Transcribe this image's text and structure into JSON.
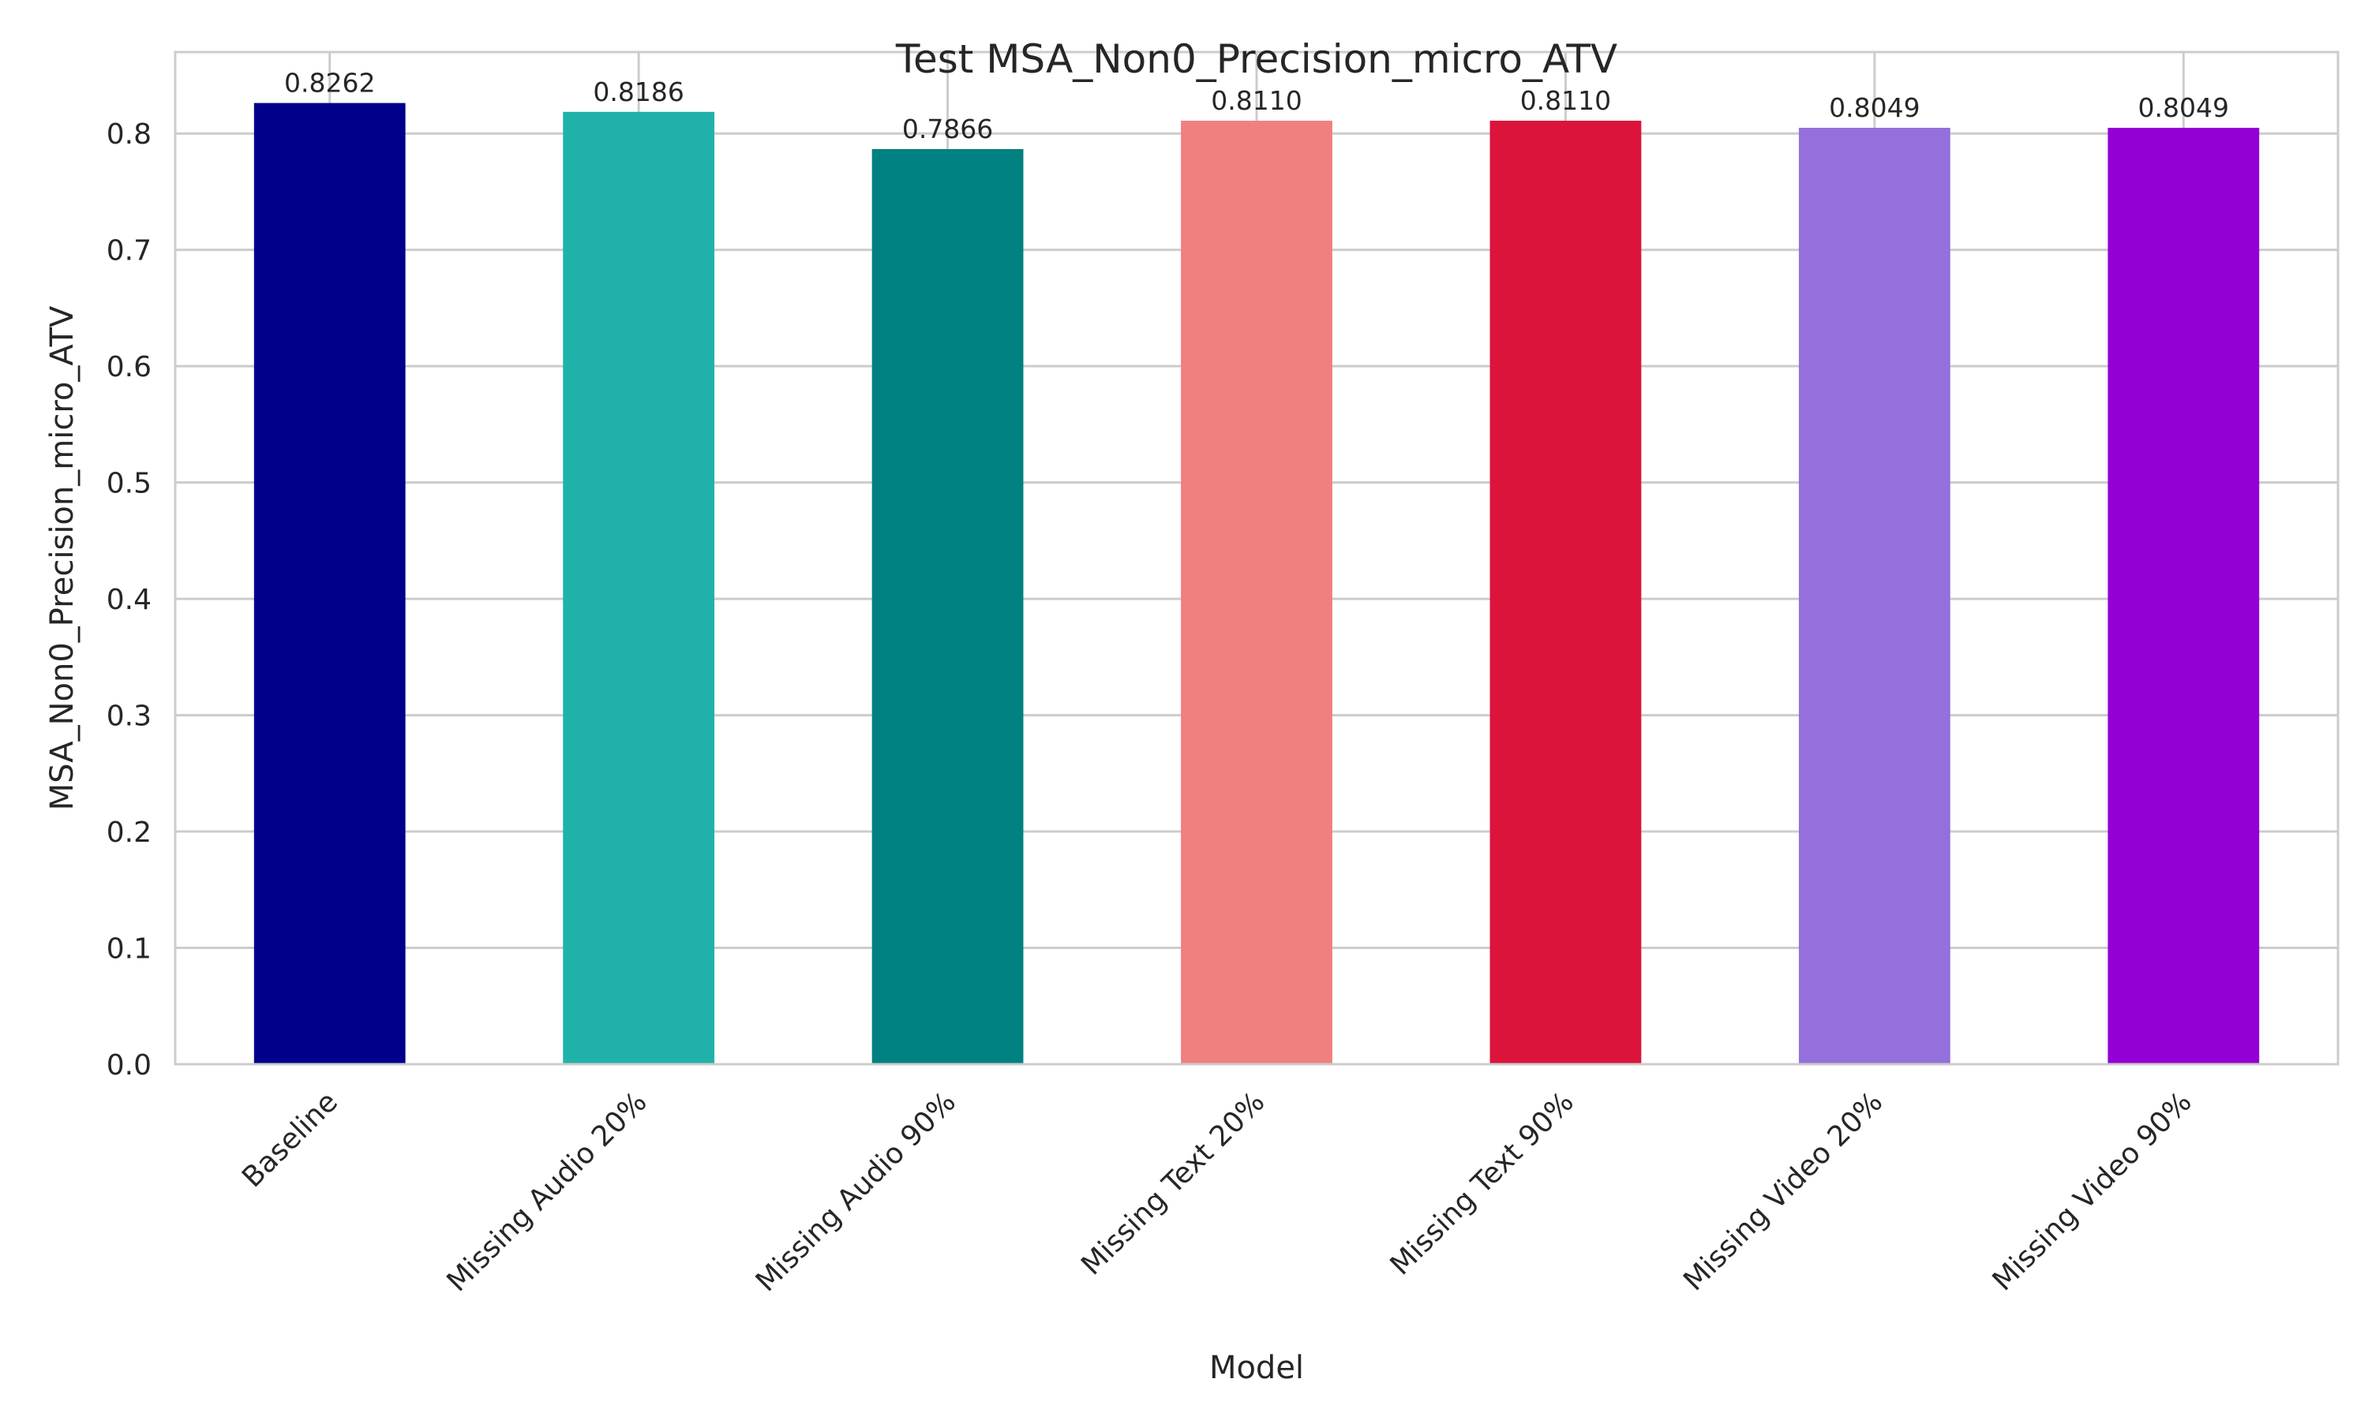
{
  "chart_data": {
    "type": "bar",
    "title": "Test MSA_Non0_Precision_micro_ATV",
    "xlabel": "Model",
    "ylabel": "MSA_Non0_Precision_micro_ATV",
    "ylim": [
      0,
      0.87
    ],
    "yticks": [
      0.0,
      0.1,
      0.2,
      0.3,
      0.4,
      0.5,
      0.6,
      0.7,
      0.8
    ],
    "ytick_labels": [
      "0.0",
      "0.1",
      "0.2",
      "0.3",
      "0.4",
      "0.5",
      "0.6",
      "0.7",
      "0.8"
    ],
    "categories": [
      "Baseline",
      "Missing Audio 20%",
      "Missing Audio 90%",
      "Missing Text 20%",
      "Missing Text 90%",
      "Missing Video 20%",
      "Missing Video 90%"
    ],
    "values": [
      0.8262,
      0.8186,
      0.7866,
      0.811,
      0.811,
      0.8049,
      0.8049
    ],
    "value_labels": [
      "0.8262",
      "0.8186",
      "0.7866",
      "0.8110",
      "0.8110",
      "0.8049",
      "0.8049"
    ],
    "colors": [
      "#00008b",
      "#20b2aa",
      "#008080",
      "#f08080",
      "#dc143c",
      "#9370db",
      "#9400d3"
    ],
    "grid": true,
    "legend": "none"
  }
}
